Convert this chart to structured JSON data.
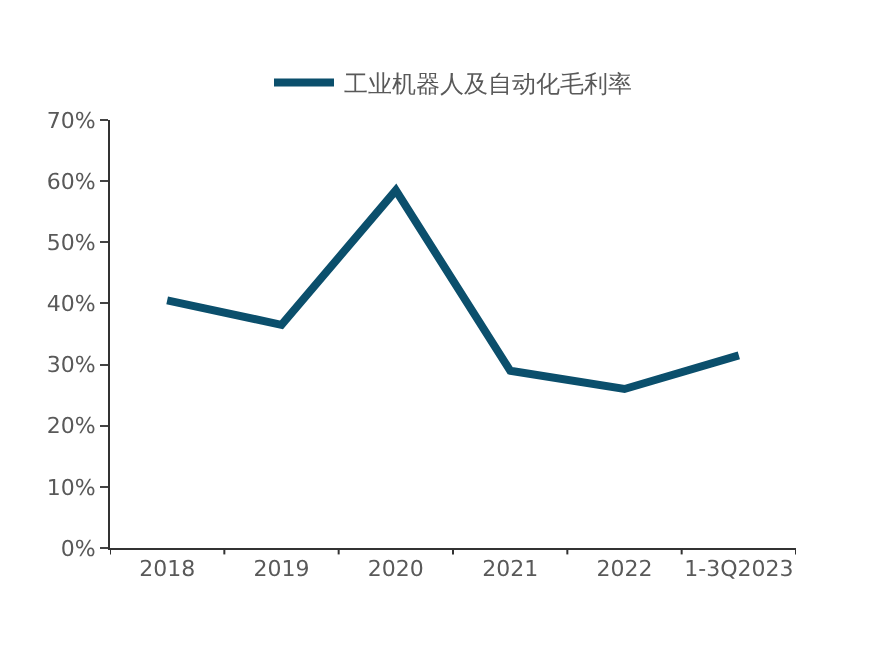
{
  "chart_data": {
    "type": "line",
    "categories": [
      "2018",
      "2019",
      "2020",
      "2021",
      "2022",
      "1-3Q2023"
    ],
    "series": [
      {
        "name": "工业机器人及自动化毛利率",
        "color": "#0b4f6c",
        "values": [
          40.5,
          36.5,
          58.5,
          29,
          26,
          31.5
        ]
      }
    ],
    "ylim": [
      0,
      70
    ],
    "yticks": [
      {
        "value": 0,
        "label": "0%"
      },
      {
        "value": 10,
        "label": "10%"
      },
      {
        "value": 20,
        "label": "20%"
      },
      {
        "value": 30,
        "label": "30%"
      },
      {
        "value": 40,
        "label": "40%"
      },
      {
        "value": 50,
        "label": "50%"
      },
      {
        "value": 60,
        "label": "60%"
      },
      {
        "value": 70,
        "label": "70%"
      }
    ],
    "legend": "top",
    "marker": "none",
    "line_style": "solid"
  }
}
